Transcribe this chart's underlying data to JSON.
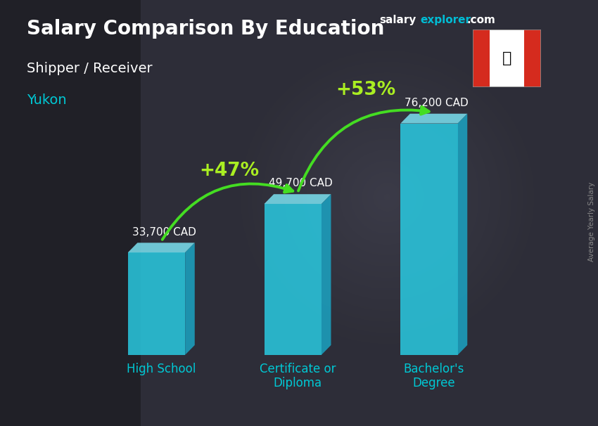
{
  "title": "Salary Comparison By Education",
  "subtitle": "Shipper / Receiver",
  "location": "Yukon",
  "categories": [
    "High School",
    "Certificate or\nDiploma",
    "Bachelor's\nDegree"
  ],
  "values": [
    33700,
    49700,
    76200
  ],
  "value_labels": [
    "33,700 CAD",
    "49,700 CAD",
    "76,200 CAD"
  ],
  "pct_changes": [
    "+47%",
    "+53%"
  ],
  "bar_front_color": "#29d0e8",
  "bar_top_color": "#7ee8f8",
  "bar_right_color": "#1aa8c8",
  "background_color": "#2a2a3a",
  "title_color": "#ffffff",
  "subtitle_color": "#ffffff",
  "location_color": "#00c8d4",
  "value_label_color": "#ffffff",
  "category_label_color": "#00c8d4",
  "pct_color": "#aaee22",
  "arrow_color": "#44dd22",
  "brand_salary_color": "#ffffff",
  "brand_explorer_color": "#00bcd4",
  "brand_com_color": "#ffffff",
  "ylabel_color": "#888888",
  "ylabel_text": "Average Yearly Salary",
  "figsize": [
    8.5,
    6.06
  ],
  "dpi": 100
}
